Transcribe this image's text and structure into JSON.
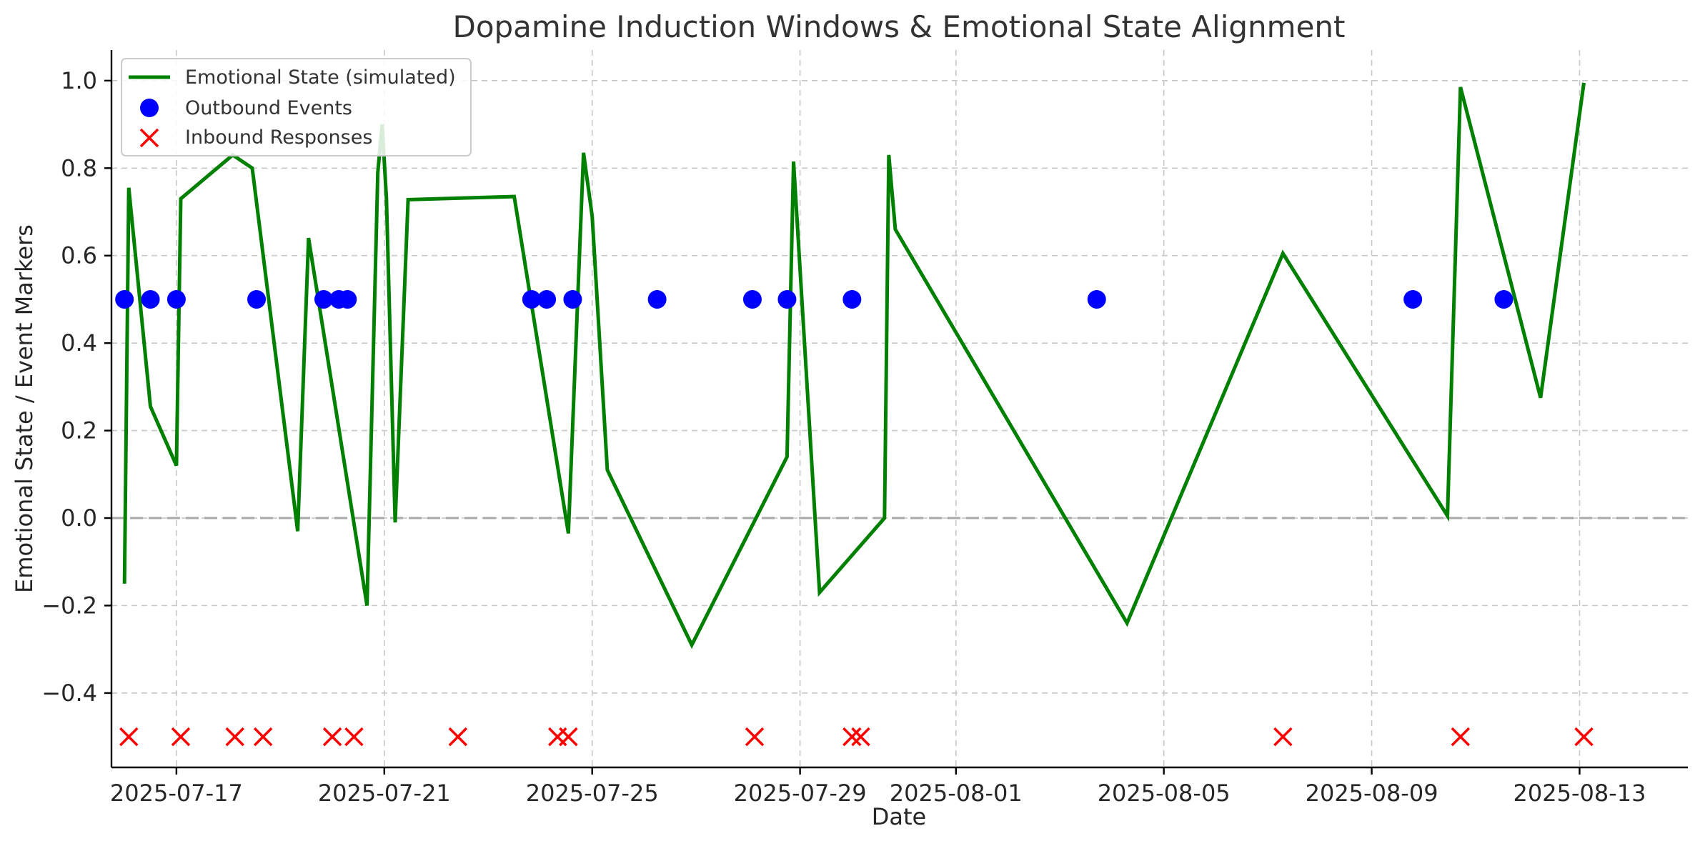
{
  "chart_data": {
    "type": "line",
    "title": "Dopamine Induction Windows & Emotional State Alignment",
    "xlabel": "Date",
    "ylabel": "Emotional State / Event Markers",
    "x_axis_type": "date",
    "xlim": [
      "2025-07-15T18:00",
      "2025-08-15T02:00"
    ],
    "ylim": [
      -0.57,
      1.07
    ],
    "x_ticks": [
      "2025-07-17",
      "2025-07-21",
      "2025-07-25",
      "2025-07-29",
      "2025-08-01",
      "2025-08-05",
      "2025-08-09",
      "2025-08-13"
    ],
    "y_ticks": [
      -0.4,
      -0.2,
      0.0,
      0.2,
      0.4,
      0.6,
      0.8,
      1.0
    ],
    "y_tick_labels": [
      "−0.4",
      "−0.2",
      "0.0",
      "0.2",
      "0.4",
      "0.6",
      "0.8",
      "1.0"
    ],
    "grid": true,
    "reference_line_y": 0.0,
    "legend_position": "top-left",
    "series": [
      {
        "name": "Emotional State (simulated)",
        "kind": "line",
        "color": "#008000",
        "points": [
          {
            "x": "2025-07-16T00:00",
            "y": -0.15
          },
          {
            "x": "2025-07-16T02:00",
            "y": 0.755
          },
          {
            "x": "2025-07-16T12:00",
            "y": 0.255
          },
          {
            "x": "2025-07-17T00:00",
            "y": 0.12
          },
          {
            "x": "2025-07-17T02:00",
            "y": 0.73
          },
          {
            "x": "2025-07-18T02:00",
            "y": 0.83
          },
          {
            "x": "2025-07-18T11:00",
            "y": 0.8
          },
          {
            "x": "2025-07-19T08:00",
            "y": -0.03
          },
          {
            "x": "2025-07-19T13:00",
            "y": 0.64
          },
          {
            "x": "2025-07-20T16:00",
            "y": -0.2
          },
          {
            "x": "2025-07-20T21:00",
            "y": 0.79
          },
          {
            "x": "2025-07-20T23:00",
            "y": 0.9
          },
          {
            "x": "2025-07-21T01:00",
            "y": 0.73
          },
          {
            "x": "2025-07-21T05:00",
            "y": -0.01
          },
          {
            "x": "2025-07-21T11:00",
            "y": 0.728
          },
          {
            "x": "2025-07-23T12:00",
            "y": 0.735
          },
          {
            "x": "2025-07-24T13:00",
            "y": -0.035
          },
          {
            "x": "2025-07-24T20:00",
            "y": 0.835
          },
          {
            "x": "2025-07-25T00:00",
            "y": 0.69
          },
          {
            "x": "2025-07-25T07:00",
            "y": 0.11
          },
          {
            "x": "2025-07-26T22:00",
            "y": -0.29
          },
          {
            "x": "2025-07-28T18:00",
            "y": 0.14
          },
          {
            "x": "2025-07-28T21:00",
            "y": 0.815
          },
          {
            "x": "2025-07-29T09:00",
            "y": -0.17
          },
          {
            "x": "2025-07-30T15:00",
            "y": 0.0
          },
          {
            "x": "2025-07-30T17:00",
            "y": 0.83
          },
          {
            "x": "2025-07-30T20:00",
            "y": 0.66
          },
          {
            "x": "2025-08-04T07:00",
            "y": -0.24
          },
          {
            "x": "2025-08-07T07:00",
            "y": 0.605
          },
          {
            "x": "2025-08-10T11:00",
            "y": 0.005
          },
          {
            "x": "2025-08-10T17:00",
            "y": 0.985
          },
          {
            "x": "2025-08-12T06:00",
            "y": 0.275
          },
          {
            "x": "2025-08-13T02:00",
            "y": 0.995
          }
        ]
      },
      {
        "name": "Outbound Events",
        "kind": "scatter",
        "marker": "circle",
        "color": "#0000ff",
        "y": 0.5,
        "x": [
          "2025-07-16T00:00",
          "2025-07-16T12:00",
          "2025-07-17T00:00",
          "2025-07-18T13:00",
          "2025-07-19T20:00",
          "2025-07-20T03:00",
          "2025-07-20T07:00",
          "2025-07-23T20:00",
          "2025-07-24T03:00",
          "2025-07-24T15:00",
          "2025-07-26T06:00",
          "2025-07-28T02:00",
          "2025-07-28T18:00",
          "2025-07-30T00:00",
          "2025-08-03T17:00",
          "2025-08-09T19:00",
          "2025-08-11T13:00"
        ]
      },
      {
        "name": "Inbound Responses",
        "kind": "scatter",
        "marker": "x",
        "color": "#ff0000",
        "y": -0.5,
        "x": [
          "2025-07-16T02:00",
          "2025-07-17T02:00",
          "2025-07-18T03:00",
          "2025-07-18T16:00",
          "2025-07-20T00:00",
          "2025-07-20T10:00",
          "2025-07-22T10:00",
          "2025-07-24T08:00",
          "2025-07-24T13:00",
          "2025-07-28T03:00",
          "2025-07-30T00:00",
          "2025-07-30T04:00",
          "2025-08-07T07:00",
          "2025-08-10T17:00",
          "2025-08-13T02:00"
        ]
      }
    ]
  }
}
